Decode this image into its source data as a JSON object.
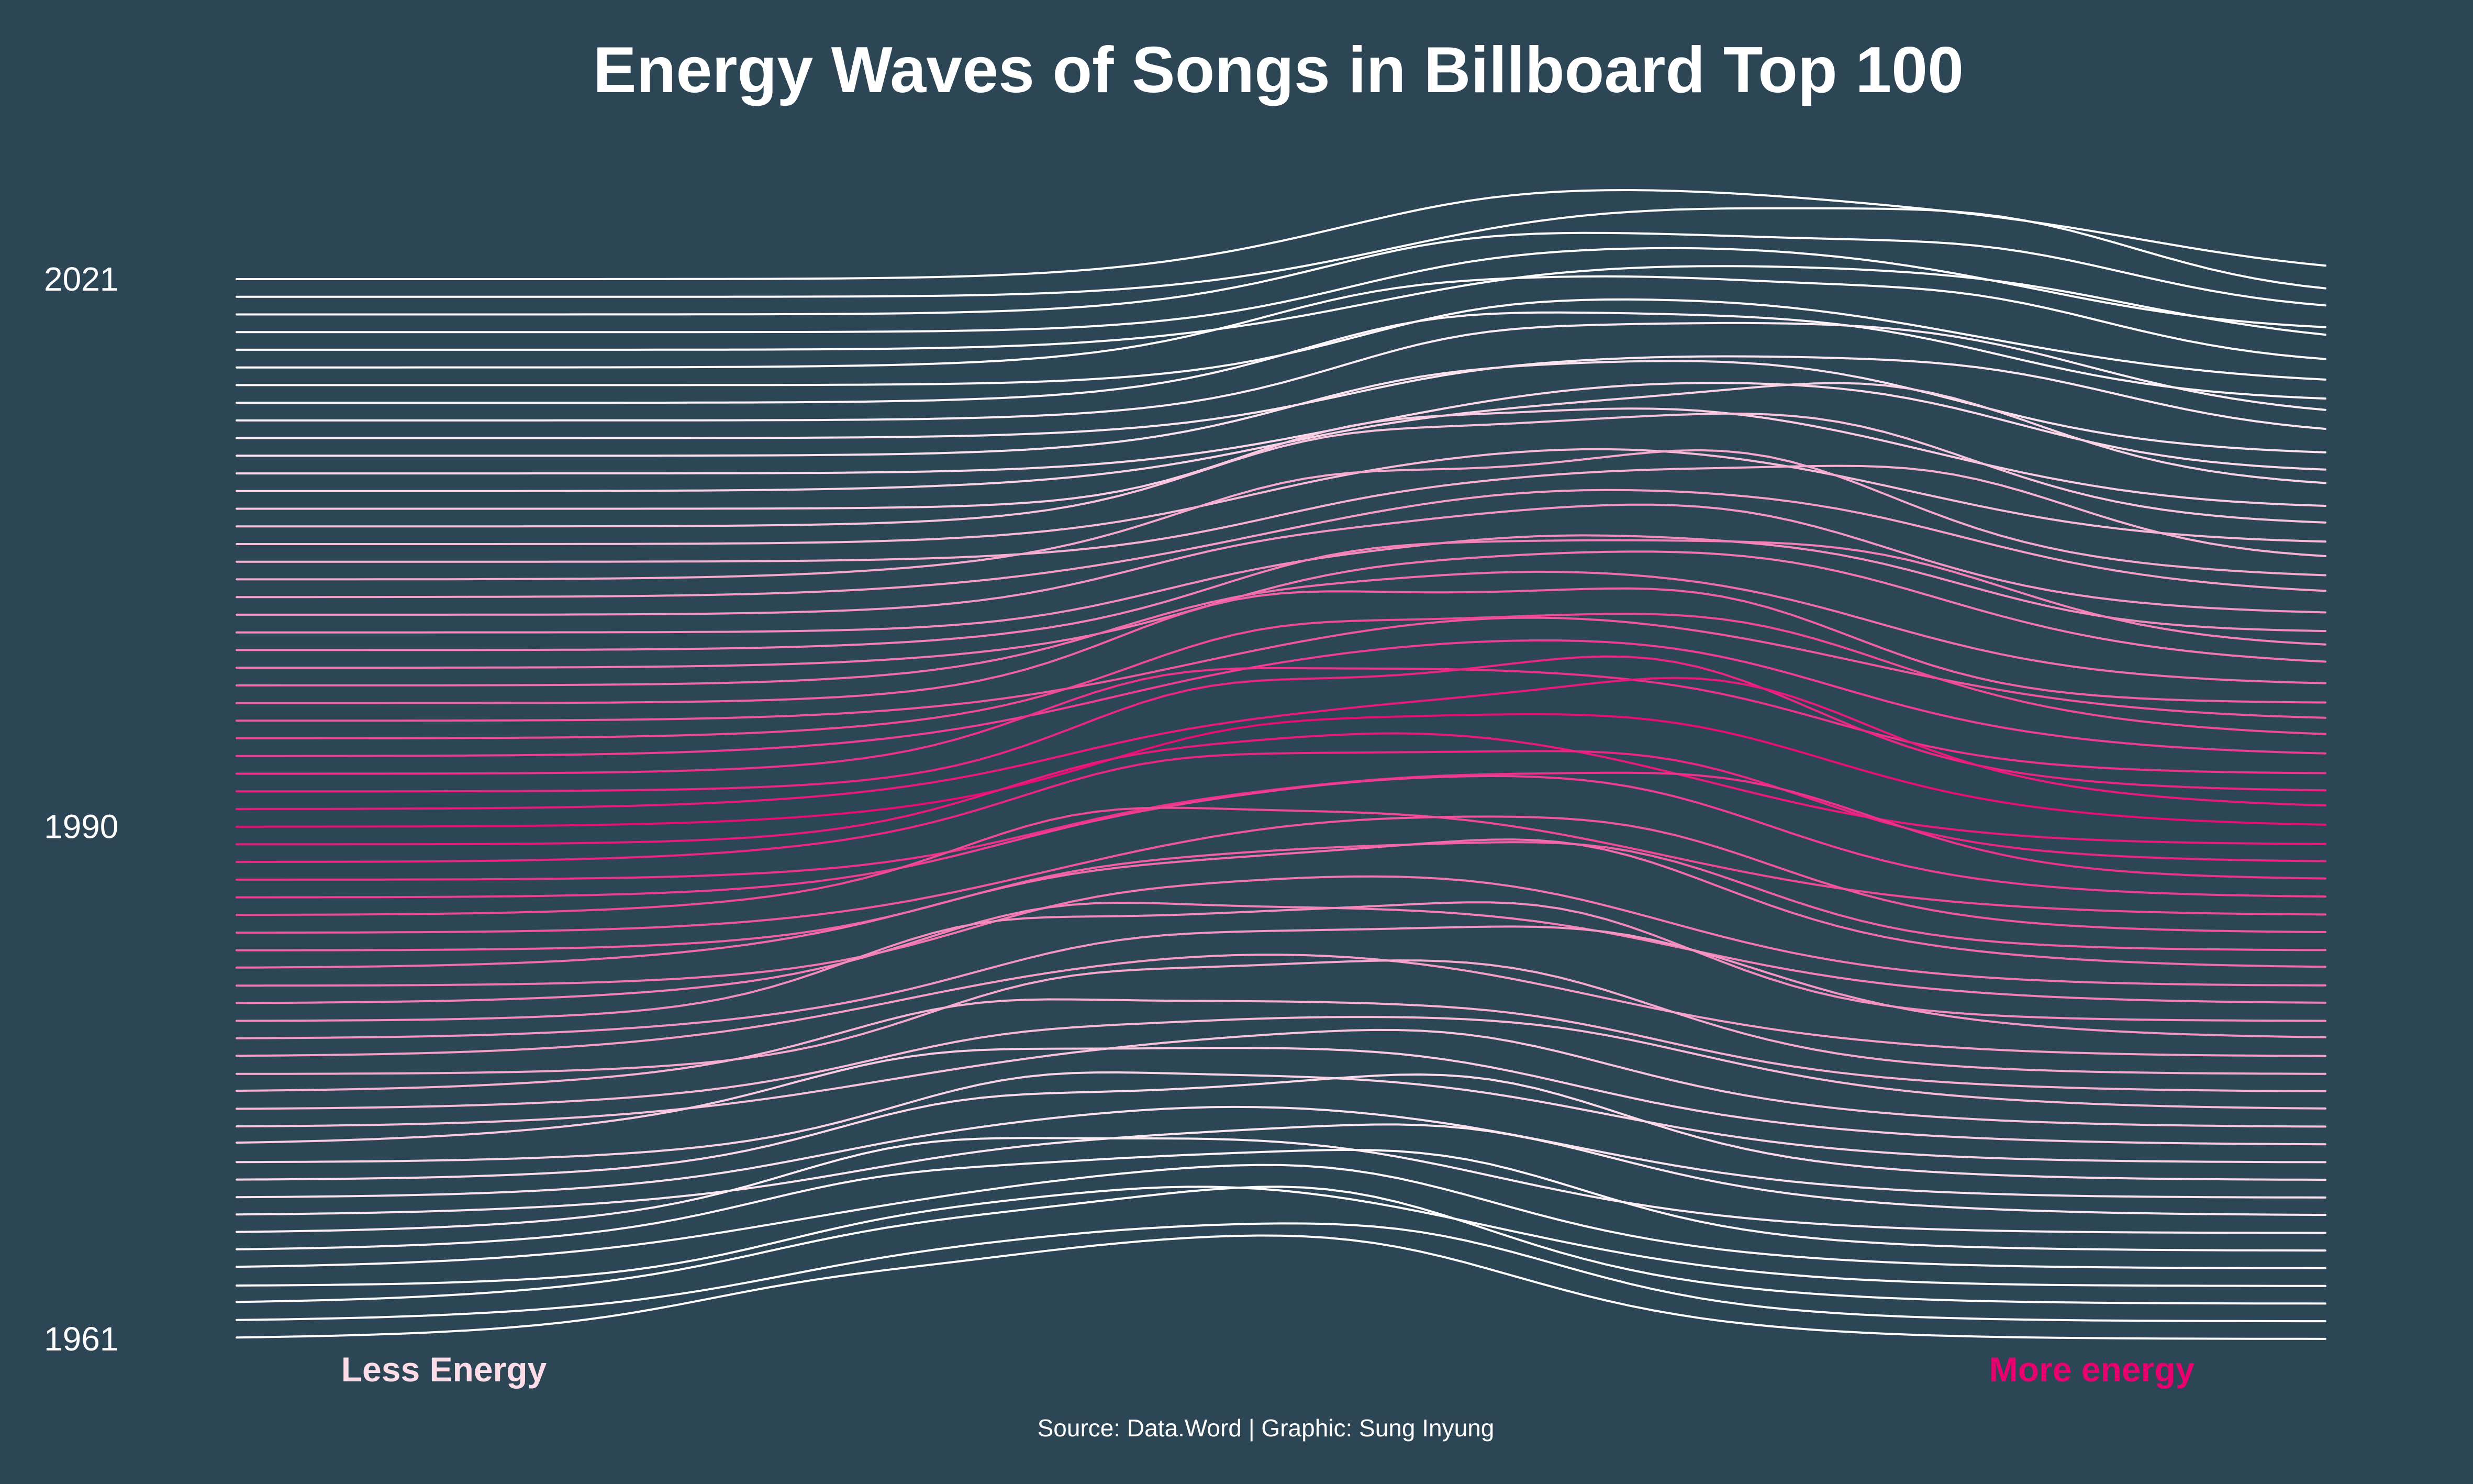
{
  "chart_data": {
    "type": "line",
    "title": "Energy Waves of Songs in Billboard Top 100",
    "xlabel": "",
    "ylabel": "",
    "x_min_label": "Less Energy",
    "x_max_label": "More energy",
    "source": "Source: Data.Word | Graphic: Sung Inyung",
    "year_range": [
      1961,
      2021
    ],
    "yticks": [
      1961,
      1990,
      2021
    ],
    "grid": false,
    "colors": {
      "background": "#2c4656",
      "text": "#ffffff",
      "less_energy": "#fcdde8",
      "more_energy": "#e8006f"
    }
  }
}
